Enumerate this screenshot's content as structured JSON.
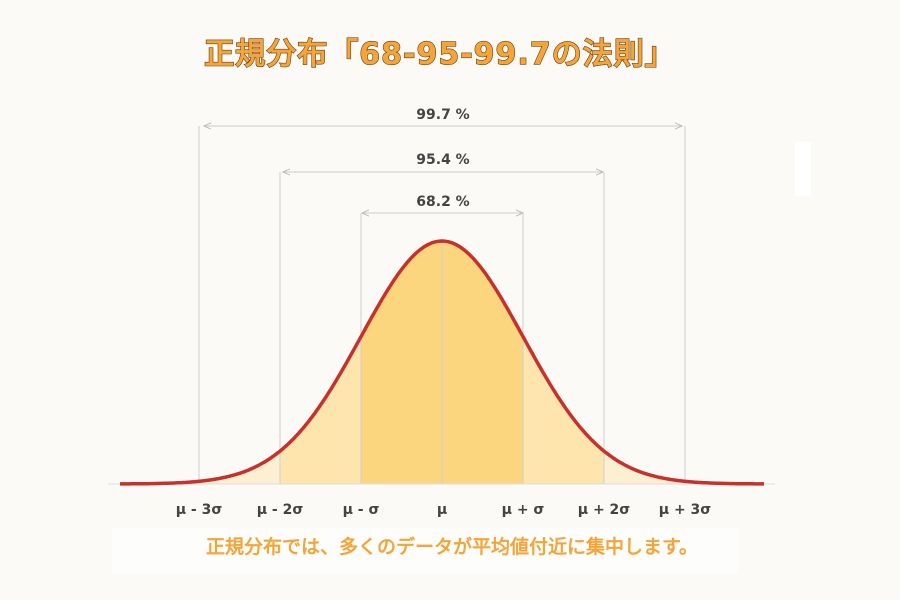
{
  "title": "正規分布「68-95-99.7の法則」",
  "ranges": [
    {
      "label": "99.7 %"
    },
    {
      "label": "95.4 %"
    },
    {
      "label": "68.2 %"
    }
  ],
  "axis_labels": [
    "μ - 3σ",
    "μ - 2σ",
    "μ - σ",
    "μ",
    "μ + σ",
    "μ + 2σ",
    "μ + 3σ"
  ],
  "caption": "正規分布では、多くのデータが平均値付近に集中します。"
}
